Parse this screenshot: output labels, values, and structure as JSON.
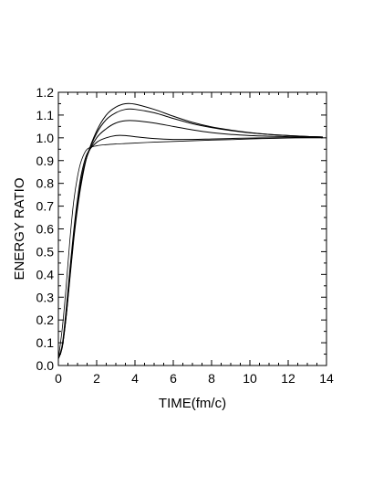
{
  "chart_data": {
    "type": "line",
    "title": "",
    "xlabel": "TIME(fm/c)",
    "ylabel": "ENERGY  RATIO",
    "xlim": [
      0,
      14
    ],
    "ylim": [
      0.0,
      1.2
    ],
    "x_ticks": [
      0,
      2,
      4,
      6,
      8,
      10,
      12,
      14
    ],
    "y_ticks": [
      0.0,
      0.1,
      0.2,
      0.3,
      0.4,
      0.5,
      0.6,
      0.7,
      0.8,
      0.9,
      1.0,
      1.1,
      1.2
    ],
    "x_tick_labels": [
      "0",
      "2",
      "4",
      "6",
      "8",
      "10",
      "12",
      "14"
    ],
    "y_tick_labels": [
      "0.0",
      "0.1",
      "0.2",
      "0.3",
      "0.4",
      "0.5",
      "0.6",
      "0.7",
      "0.8",
      "0.9",
      "1.0",
      "1.1",
      "1.2"
    ],
    "grid": false,
    "line_color": "#000000",
    "series": [
      {
        "x": [
          0,
          0.2,
          0.4,
          0.6,
          0.8,
          1.0,
          1.2,
          1.5,
          2.0,
          2.5,
          3.0,
          3.5,
          4.0,
          5.0,
          6.0,
          7.0,
          8.0,
          9.0,
          10.0,
          11.0,
          12.0,
          13.0,
          13.8
        ],
        "y": [
          0.03,
          0.16,
          0.34,
          0.55,
          0.72,
          0.83,
          0.9,
          0.95,
          0.965,
          0.97,
          0.973,
          0.975,
          0.977,
          0.981,
          0.984,
          0.987,
          0.99,
          0.992,
          0.995,
          0.997,
          0.999,
          1.0,
          1.0
        ]
      },
      {
        "x": [
          0,
          0.2,
          0.4,
          0.6,
          0.8,
          1.0,
          1.2,
          1.5,
          2.0,
          2.5,
          3.0,
          3.5,
          4.0,
          5.0,
          6.0,
          7.0,
          8.0,
          9.0,
          10.0,
          11.0,
          12.0,
          13.0,
          13.8
        ],
        "y": [
          0.03,
          0.09,
          0.24,
          0.42,
          0.59,
          0.73,
          0.84,
          0.93,
          0.98,
          1.0,
          1.01,
          1.01,
          1.005,
          0.997,
          0.993,
          0.993,
          0.995,
          0.997,
          0.999,
          1.0,
          1.001,
          1.001,
          1.001
        ]
      },
      {
        "x": [
          0,
          0.2,
          0.4,
          0.6,
          0.8,
          1.0,
          1.2,
          1.5,
          2.0,
          2.5,
          3.0,
          3.5,
          4.0,
          5.0,
          6.0,
          7.0,
          8.0,
          9.0,
          10.0,
          11.0,
          12.0,
          13.0,
          13.8
        ],
        "y": [
          0.03,
          0.08,
          0.22,
          0.4,
          0.57,
          0.71,
          0.82,
          0.92,
          1.0,
          1.04,
          1.065,
          1.075,
          1.075,
          1.065,
          1.05,
          1.035,
          1.023,
          1.015,
          1.01,
          1.007,
          1.005,
          1.003,
          1.002
        ]
      },
      {
        "x": [
          0,
          0.2,
          0.4,
          0.6,
          0.8,
          1.0,
          1.2,
          1.5,
          2.0,
          2.5,
          3.0,
          3.5,
          4.0,
          5.0,
          6.0,
          7.0,
          8.0,
          9.0,
          10.0,
          11.0,
          12.0,
          13.0,
          13.8
        ],
        "y": [
          0.03,
          0.08,
          0.21,
          0.39,
          0.56,
          0.7,
          0.81,
          0.92,
          1.02,
          1.08,
          1.11,
          1.125,
          1.125,
          1.11,
          1.085,
          1.062,
          1.045,
          1.032,
          1.022,
          1.015,
          1.01,
          1.006,
          1.004
        ]
      },
      {
        "x": [
          0,
          0.2,
          0.4,
          0.6,
          0.8,
          1.0,
          1.2,
          1.5,
          2.0,
          2.5,
          3.0,
          3.5,
          4.0,
          5.0,
          6.0,
          7.0,
          8.0,
          9.0,
          10.0,
          11.0,
          12.0,
          13.0,
          13.8
        ],
        "y": [
          0.03,
          0.08,
          0.21,
          0.38,
          0.55,
          0.69,
          0.8,
          0.92,
          1.03,
          1.1,
          1.135,
          1.15,
          1.148,
          1.125,
          1.095,
          1.068,
          1.048,
          1.034,
          1.023,
          1.015,
          1.01,
          1.006,
          1.004
        ]
      }
    ]
  }
}
